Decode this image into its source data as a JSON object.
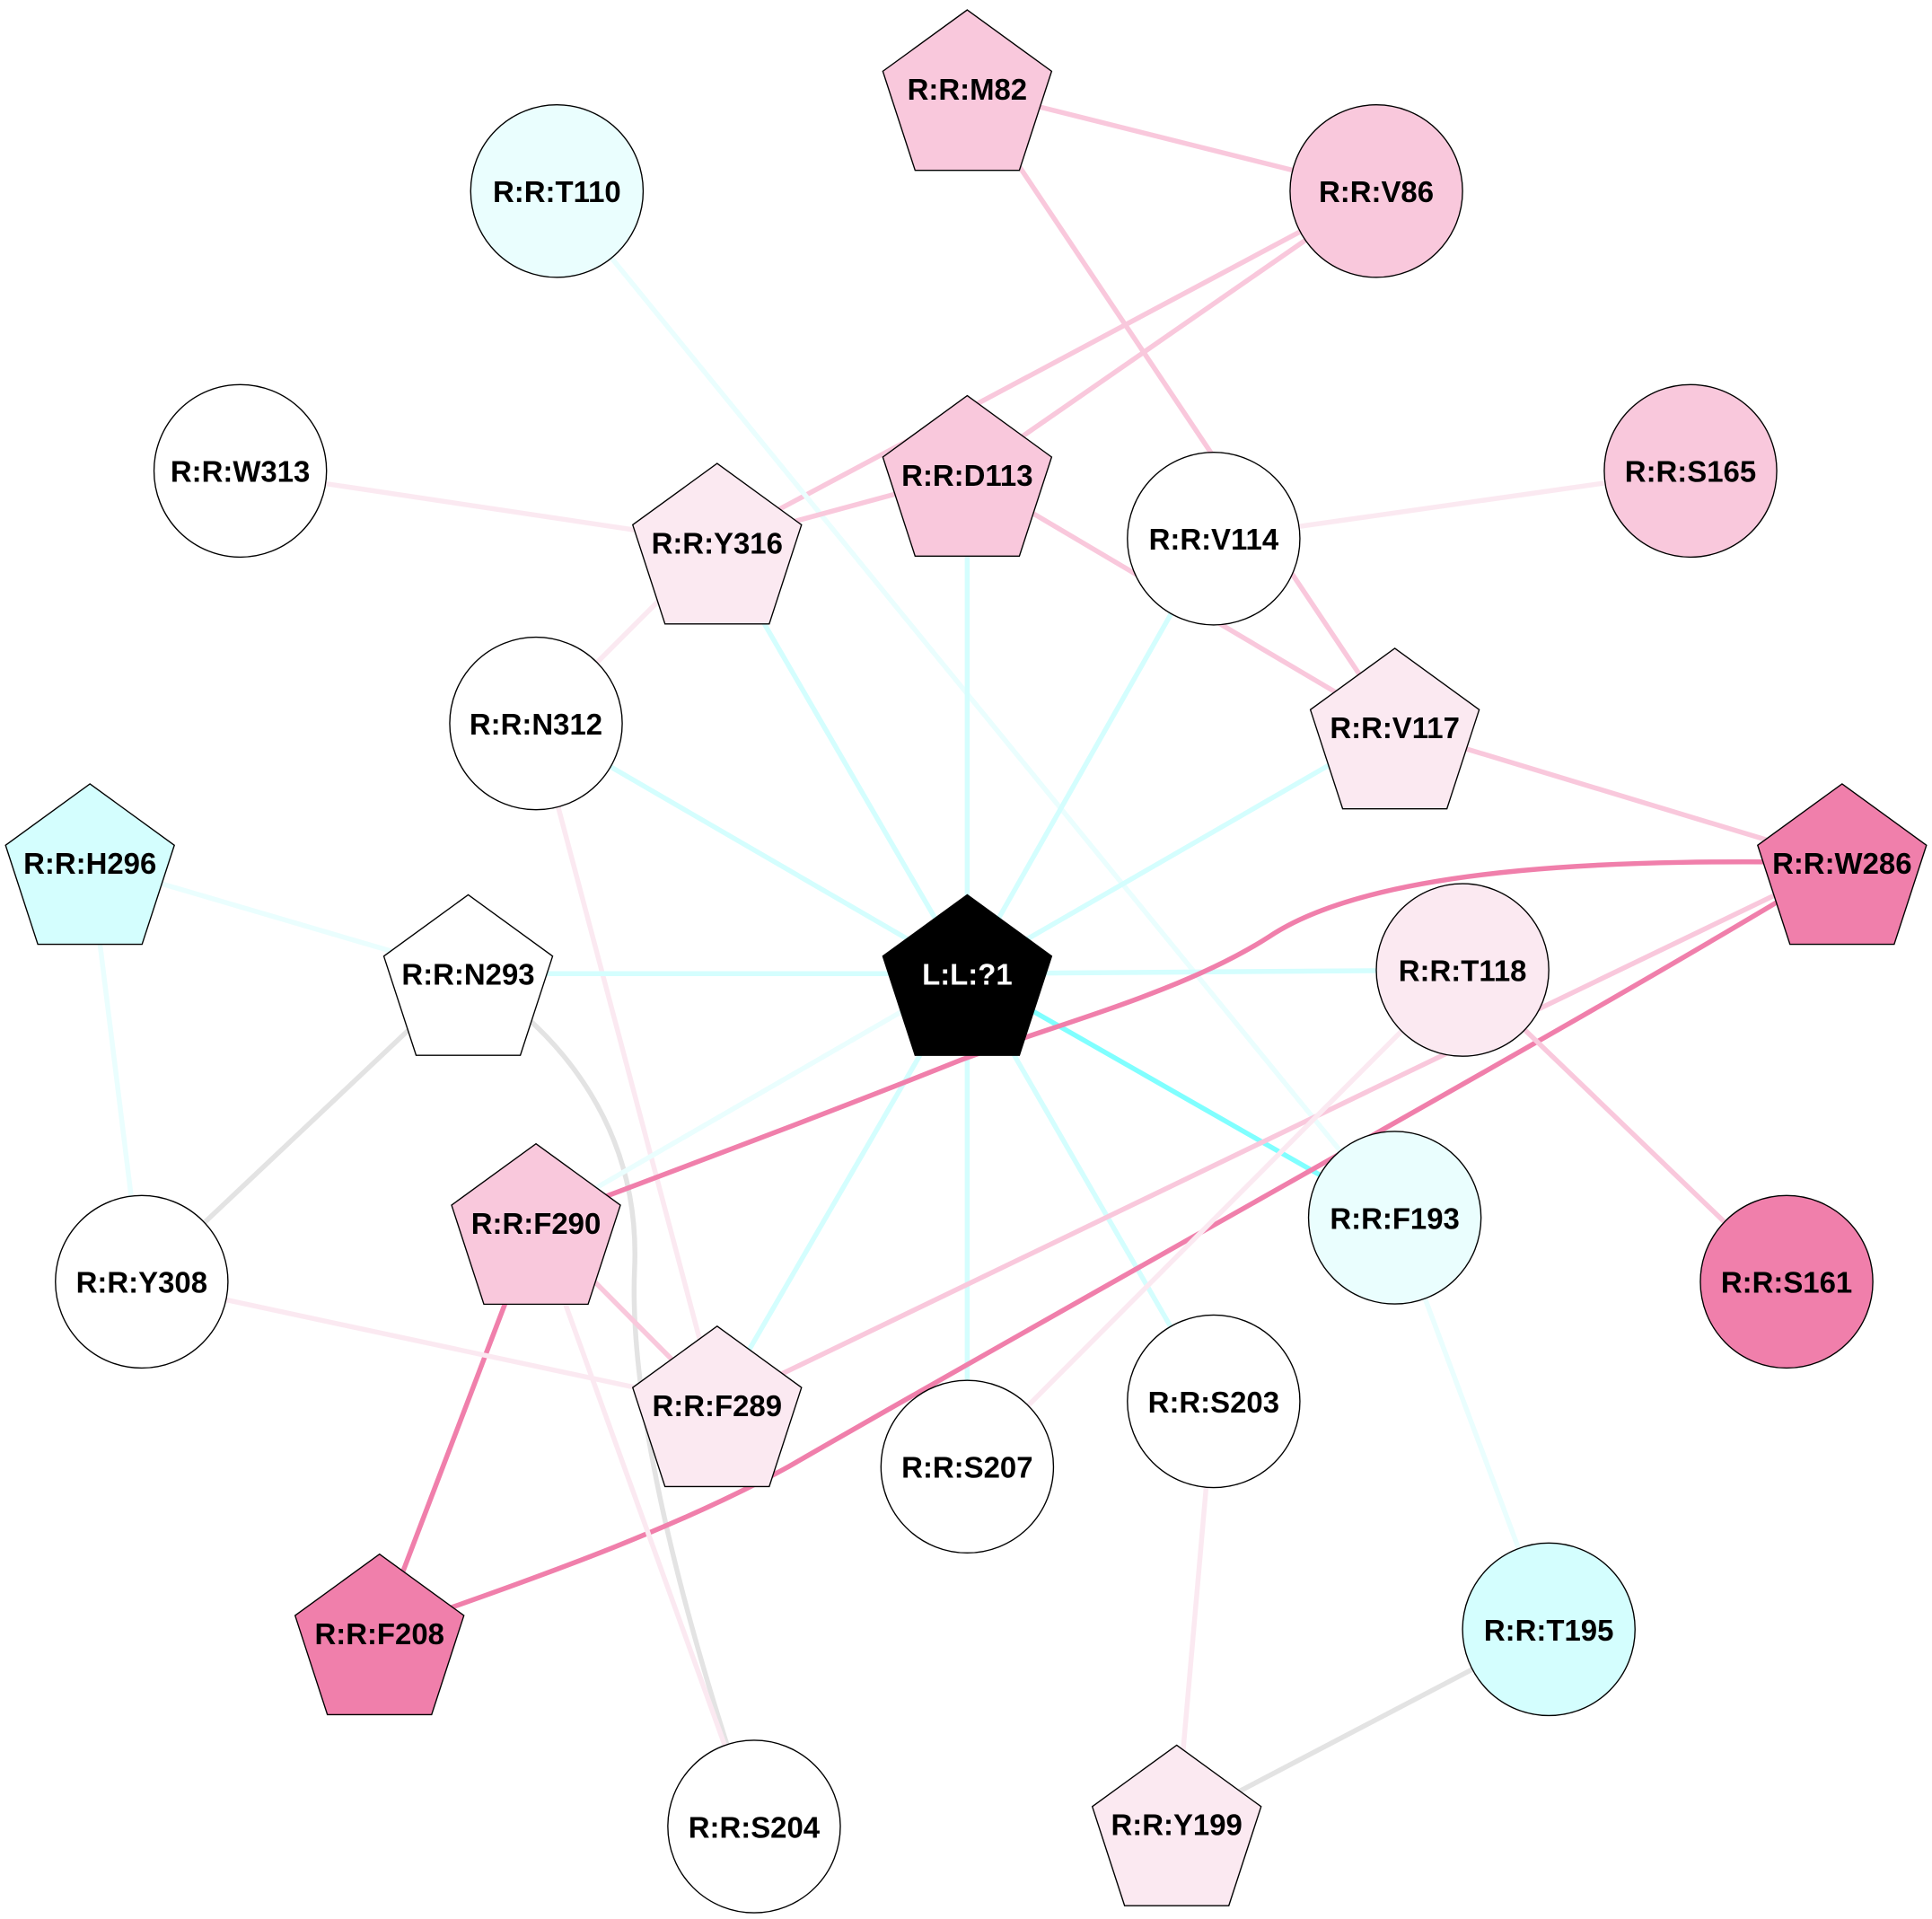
{
  "colors": {
    "pink": "#f9c8dc",
    "light_pink": "#fbe9f1",
    "hot_pink": "#f07fab",
    "cyan": "#d4fefe",
    "light_cyan": "#eafefe",
    "strong_cyan": "#80ffff",
    "gray": "#e3e3e3",
    "white": "#ffffff",
    "black": "#000000"
  },
  "nodes": [
    {
      "id": "M82",
      "label": "R:R:M82",
      "shape": "pentagon",
      "fill": "#f9c8dc"
    },
    {
      "id": "T110",
      "label": "R:R:T110",
      "shape": "circle",
      "fill": "#eafefe"
    },
    {
      "id": "V86",
      "label": "R:R:V86",
      "shape": "circle",
      "fill": "#f9c8dc"
    },
    {
      "id": "W313",
      "label": "R:R:W313",
      "shape": "circle",
      "fill": "#ffffff"
    },
    {
      "id": "Y316",
      "label": "R:R:Y316",
      "shape": "pentagon",
      "fill": "#fbe9f1"
    },
    {
      "id": "D113",
      "label": "R:R:D113",
      "shape": "pentagon",
      "fill": "#f9c8dc"
    },
    {
      "id": "V114",
      "label": "R:R:V114",
      "shape": "circle",
      "fill": "#ffffff"
    },
    {
      "id": "S165",
      "label": "R:R:S165",
      "shape": "circle",
      "fill": "#f9c8dc"
    },
    {
      "id": "N312",
      "label": "R:R:N312",
      "shape": "circle",
      "fill": "#ffffff"
    },
    {
      "id": "V117",
      "label": "R:R:V117",
      "shape": "pentagon",
      "fill": "#fbe9f1"
    },
    {
      "id": "H296",
      "label": "R:R:H296",
      "shape": "pentagon",
      "fill": "#d4fefe"
    },
    {
      "id": "N293",
      "label": "R:R:N293",
      "shape": "pentagon",
      "fill": "#ffffff"
    },
    {
      "id": "L1",
      "label": "L:L:?1",
      "shape": "pentagon",
      "fill": "#000000",
      "text_color": "#ffffff"
    },
    {
      "id": "W286",
      "label": "R:R:W286",
      "shape": "pentagon",
      "fill": "#f07fab"
    },
    {
      "id": "T118",
      "label": "R:R:T118",
      "shape": "circle",
      "fill": "#fbe9f1"
    },
    {
      "id": "F290",
      "label": "R:R:F290",
      "shape": "pentagon",
      "fill": "#f9c8dc"
    },
    {
      "id": "F193",
      "label": "R:R:F193",
      "shape": "circle",
      "fill": "#eafefe"
    },
    {
      "id": "S161",
      "label": "R:R:S161",
      "shape": "circle",
      "fill": "#f07fab"
    },
    {
      "id": "Y308",
      "label": "R:R:Y308",
      "shape": "circle",
      "fill": "#ffffff"
    },
    {
      "id": "F289",
      "label": "R:R:F289",
      "shape": "pentagon",
      "fill": "#fbe9f1"
    },
    {
      "id": "S207",
      "label": "R:R:S207",
      "shape": "circle",
      "fill": "#ffffff"
    },
    {
      "id": "S203",
      "label": "R:R:S203",
      "shape": "circle",
      "fill": "#ffffff"
    },
    {
      "id": "F208",
      "label": "R:R:F208",
      "shape": "pentagon",
      "fill": "#f07fab"
    },
    {
      "id": "T195",
      "label": "R:R:T195",
      "shape": "circle",
      "fill": "#d4fefe"
    },
    {
      "id": "S204",
      "label": "R:R:S204",
      "shape": "circle",
      "fill": "#ffffff"
    },
    {
      "id": "Y199",
      "label": "R:R:Y199",
      "shape": "pentagon",
      "fill": "#fbe9f1"
    }
  ],
  "edges": [
    {
      "from": "M82",
      "to": "V86",
      "color": "#f9c8dc"
    },
    {
      "from": "M82",
      "to": "V117",
      "color": "#f9c8dc"
    },
    {
      "from": "V86",
      "to": "Y316",
      "color": "#f9c8dc"
    },
    {
      "from": "V86",
      "to": "D113",
      "color": "#f9c8dc"
    },
    {
      "from": "T110",
      "to": "F193",
      "color": "#eafefe"
    },
    {
      "from": "W313",
      "to": "Y316",
      "color": "#fbe9f1"
    },
    {
      "from": "Y316",
      "to": "D113",
      "color": "#f9c8dc"
    },
    {
      "from": "Y316",
      "to": "N312",
      "color": "#fbe9f1"
    },
    {
      "from": "Y316",
      "to": "L1",
      "color": "#d4fefe"
    },
    {
      "from": "D113",
      "to": "L1",
      "color": "#d4fefe"
    },
    {
      "from": "D113",
      "to": "V117",
      "color": "#f9c8dc"
    },
    {
      "from": "V114",
      "to": "L1",
      "color": "#d4fefe"
    },
    {
      "from": "V114",
      "to": "S165",
      "color": "#fbe9f1"
    },
    {
      "from": "N312",
      "to": "L1",
      "color": "#d4fefe"
    },
    {
      "from": "N312",
      "to": "F289",
      "color": "#fbe9f1"
    },
    {
      "from": "V117",
      "to": "L1",
      "color": "#d4fefe"
    },
    {
      "from": "V117",
      "to": "W286",
      "color": "#f9c8dc"
    },
    {
      "from": "H296",
      "to": "N293",
      "color": "#eafefe"
    },
    {
      "from": "H296",
      "to": "Y308",
      "color": "#eafefe"
    },
    {
      "from": "N293",
      "to": "L1",
      "color": "#d4fefe"
    },
    {
      "from": "N293",
      "to": "Y308",
      "color": "#e3e3e3"
    },
    {
      "from": "N293",
      "to": "S204",
      "color": "#e3e3e3",
      "curved": true
    },
    {
      "from": "L1",
      "to": "T118",
      "color": "#d4fefe"
    },
    {
      "from": "L1",
      "to": "F193",
      "color": "#80ffff"
    },
    {
      "from": "L1",
      "to": "F290",
      "color": "#eafefe"
    },
    {
      "from": "L1",
      "to": "F289",
      "color": "#d4fefe"
    },
    {
      "from": "L1",
      "to": "S207",
      "color": "#d4fefe"
    },
    {
      "from": "L1",
      "to": "S203",
      "color": "#d4fefe"
    },
    {
      "from": "W286",
      "to": "F290",
      "color": "#f07fab",
      "curved": true
    },
    {
      "from": "W286",
      "to": "F289",
      "color": "#f9c8dc"
    },
    {
      "from": "W286",
      "to": "F208",
      "color": "#f07fab",
      "curved": true
    },
    {
      "from": "T118",
      "to": "S161",
      "color": "#f9c8dc"
    },
    {
      "from": "T118",
      "to": "S207",
      "color": "#fbe9f1"
    },
    {
      "from": "F290",
      "to": "F289",
      "color": "#f9c8dc"
    },
    {
      "from": "F290",
      "to": "F208",
      "color": "#f07fab"
    },
    {
      "from": "F290",
      "to": "S204",
      "color": "#fbe9f1"
    },
    {
      "from": "Y308",
      "to": "F289",
      "color": "#fbe9f1"
    },
    {
      "from": "F193",
      "to": "T195",
      "color": "#eafefe"
    },
    {
      "from": "S203",
      "to": "Y199",
      "color": "#fbe9f1"
    },
    {
      "from": "T195",
      "to": "Y199",
      "color": "#e3e3e3"
    }
  ]
}
